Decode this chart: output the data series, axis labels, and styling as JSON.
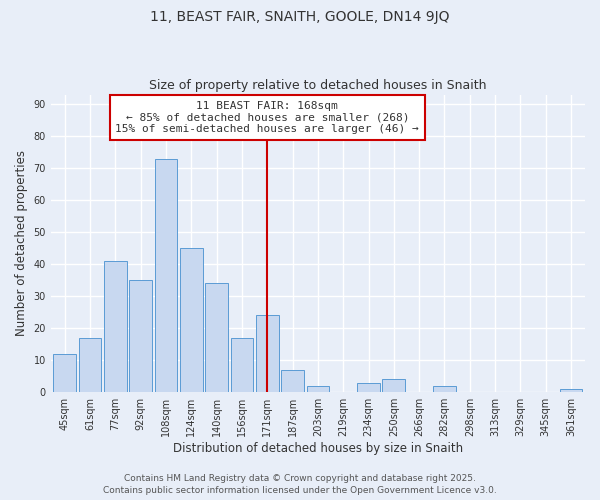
{
  "title": "11, BEAST FAIR, SNAITH, GOOLE, DN14 9JQ",
  "subtitle": "Size of property relative to detached houses in Snaith",
  "xlabel": "Distribution of detached houses by size in Snaith",
  "ylabel": "Number of detached properties",
  "categories": [
    "45sqm",
    "61sqm",
    "77sqm",
    "92sqm",
    "108sqm",
    "124sqm",
    "140sqm",
    "156sqm",
    "171sqm",
    "187sqm",
    "203sqm",
    "219sqm",
    "234sqm",
    "250sqm",
    "266sqm",
    "282sqm",
    "298sqm",
    "313sqm",
    "329sqm",
    "345sqm",
    "361sqm"
  ],
  "values": [
    12,
    17,
    41,
    35,
    73,
    45,
    34,
    17,
    24,
    7,
    2,
    0,
    3,
    4,
    0,
    2,
    0,
    0,
    0,
    0,
    1
  ],
  "bar_color": "#c8d8f0",
  "bar_edge_color": "#5b9bd5",
  "vline_x_index": 8,
  "vline_color": "#cc0000",
  "annotation_line1": "11 BEAST FAIR: 168sqm",
  "annotation_line2": "← 85% of detached houses are smaller (268)",
  "annotation_line3": "15% of semi-detached houses are larger (46) →",
  "annotation_box_color": "#ffffff",
  "annotation_box_edge": "#cc0000",
  "ylim": [
    0,
    93
  ],
  "yticks": [
    0,
    10,
    20,
    30,
    40,
    50,
    60,
    70,
    80,
    90
  ],
  "bg_color": "#e8eef8",
  "plot_bg_color": "#e8eef8",
  "footer1": "Contains HM Land Registry data © Crown copyright and database right 2025.",
  "footer2": "Contains public sector information licensed under the Open Government Licence v3.0.",
  "title_fontsize": 10,
  "subtitle_fontsize": 9,
  "axis_label_fontsize": 8.5,
  "tick_fontsize": 7,
  "annotation_fontsize": 8,
  "footer_fontsize": 6.5
}
